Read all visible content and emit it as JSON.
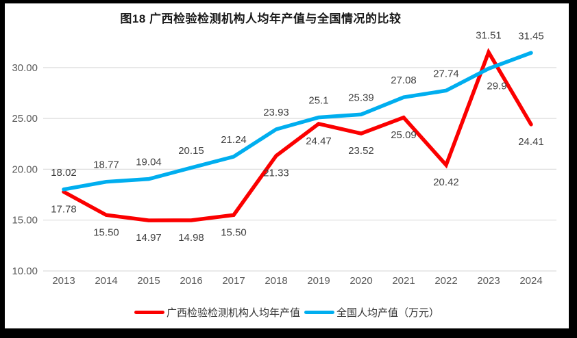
{
  "chart_data": {
    "type": "line",
    "title": "图18 广西检验检测机构人均年产值与全国情况的比较",
    "categories": [
      "2013",
      "2014",
      "2015",
      "2016",
      "2017",
      "2018",
      "2019",
      "2020",
      "2021",
      "2022",
      "2023",
      "2024"
    ],
    "series": [
      {
        "name": "广西检验检测机构人均年产值",
        "color": "#FB0000",
        "values": [
          17.78,
          15.5,
          14.97,
          14.98,
          15.5,
          21.33,
          24.47,
          23.52,
          25.09,
          20.42,
          31.51,
          24.41
        ],
        "labels": [
          "17.78",
          "15.50",
          "14.97",
          "14.98",
          "15.50",
          "21.33",
          "24.47",
          "23.52",
          "25.09",
          "20.42",
          "31.51",
          "24.41"
        ],
        "label_sides": [
          "below",
          "below",
          "below",
          "below",
          "below",
          "below",
          "below",
          "below",
          "below",
          "below",
          "above",
          "below"
        ],
        "label_dx": [
          0,
          0,
          0,
          0,
          0,
          0,
          0,
          0,
          0,
          0,
          0,
          0
        ]
      },
      {
        "name": "全国人均产值（万元）",
        "color": "#00AEEF",
        "values": [
          18.02,
          18.77,
          19.04,
          20.15,
          21.24,
          23.93,
          25.1,
          25.39,
          27.08,
          27.74,
          29.9,
          31.45
        ],
        "labels": [
          "18.02",
          "18.77",
          "19.04",
          "20.15",
          "21.24",
          "23.93",
          "25.1",
          "25.39",
          "27.08",
          "27.74",
          "29.9",
          "31.45"
        ],
        "label_sides": [
          "above",
          "above",
          "above",
          "above",
          "above",
          "above",
          "above",
          "above",
          "above",
          "above",
          "below",
          "above"
        ],
        "label_dx": [
          0,
          0,
          0,
          0,
          0,
          0,
          0,
          0,
          0,
          0,
          12,
          0
        ]
      }
    ],
    "y_ticks": [
      "10.00",
      "15.00",
      "20.00",
      "25.00",
      "30.00"
    ],
    "ylim": [
      10,
      33
    ],
    "grid": true,
    "legend_position": "bottom",
    "colors": {
      "gridline": "#DEDEDE",
      "axis_text": "#595959",
      "data_label_text": "#3F3F3F",
      "title_text": "#1A1A1A"
    }
  },
  "legend": {
    "items": [
      {
        "label": "广西检验检测机构人均年产值",
        "color": "#FB0000"
      },
      {
        "label": "全国人均产值（万元）",
        "color": "#00AEEF"
      }
    ]
  }
}
